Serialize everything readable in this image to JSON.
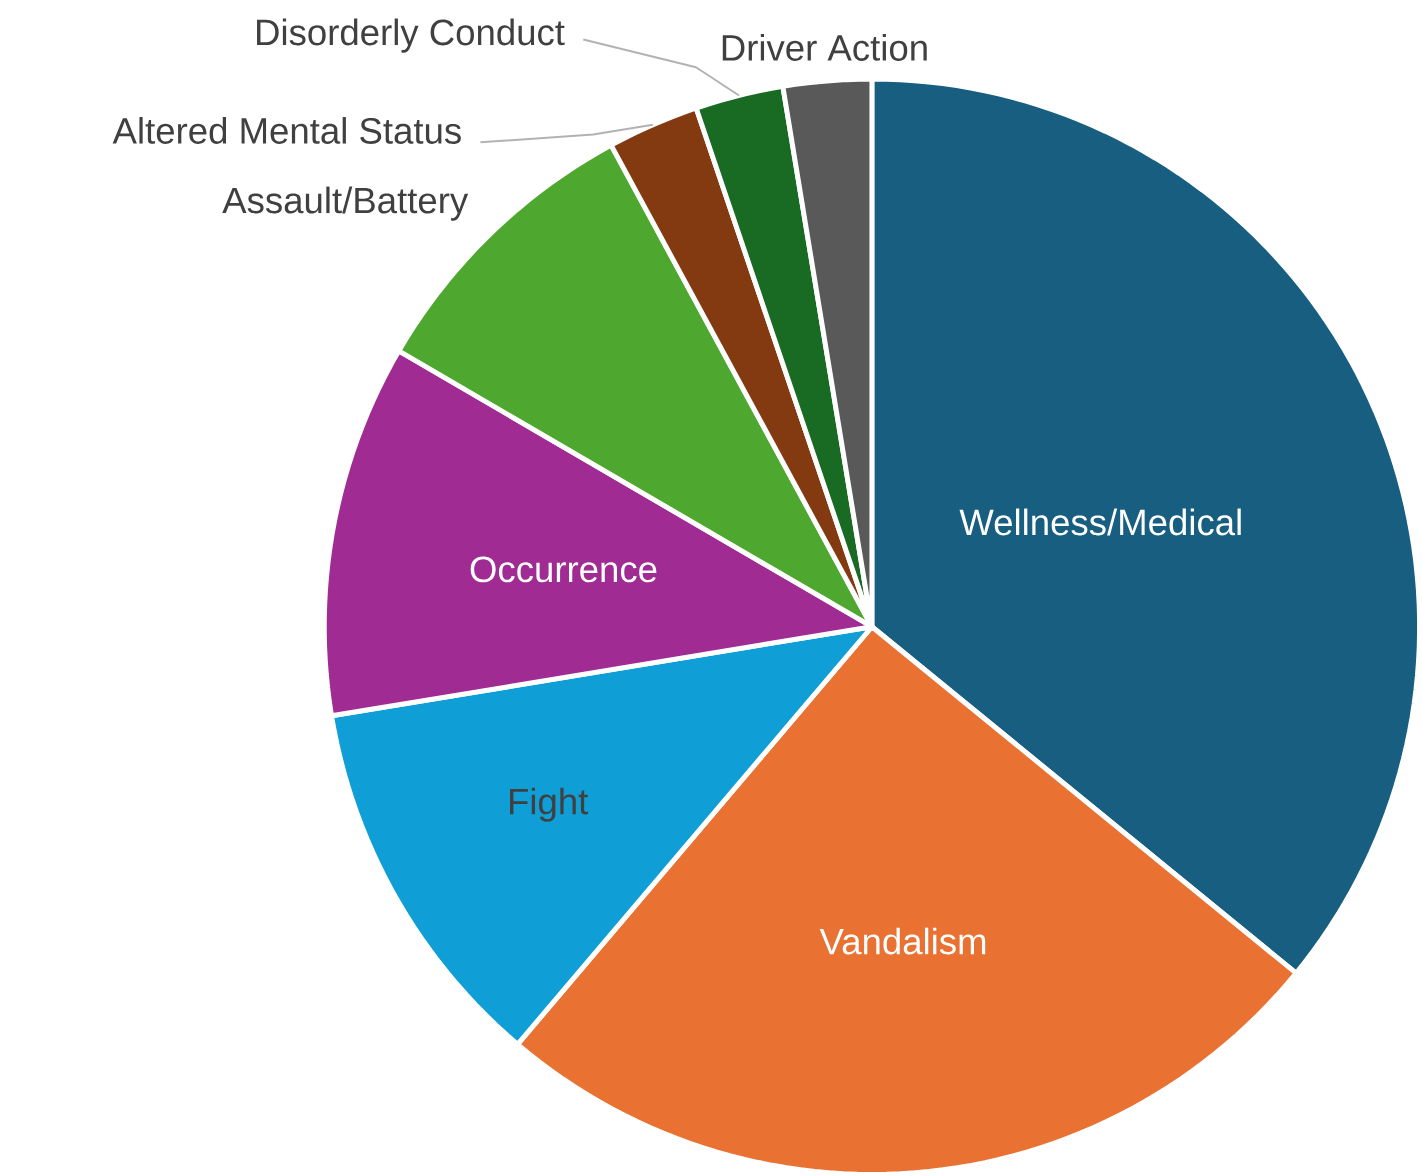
{
  "chart_data": {
    "type": "pie",
    "categories": [
      "Wellness/Medical",
      "Vandalism",
      "Fight",
      "Occurrence",
      "Assault/Battery",
      "Altered Mental Status",
      "Disorderly Conduct",
      "Driver Action"
    ],
    "values": [
      35.9,
      25.3,
      11.2,
      11.0,
      8.7,
      2.7,
      2.6,
      2.6
    ],
    "colors": [
      "#175e80",
      "#e97132",
      "#0f9ed5",
      "#a02b93",
      "#4ea72e",
      "#843a10",
      "#196b24",
      "#595959"
    ]
  }
}
